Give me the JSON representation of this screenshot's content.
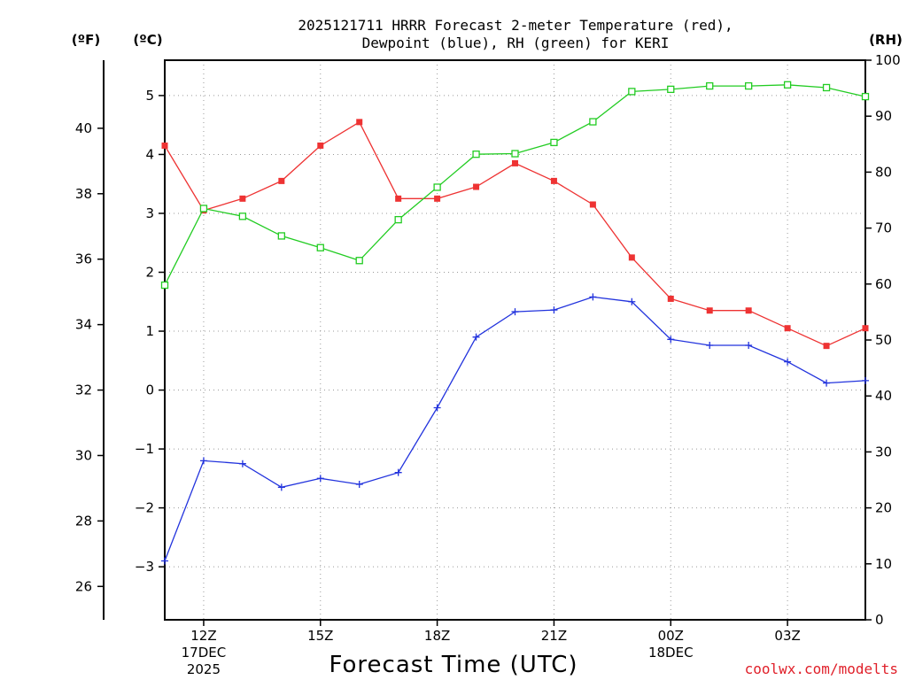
{
  "colors": {
    "temperature": "#ee3333",
    "dewpoint": "#2233dd",
    "rh": "#22cc22",
    "grid": "#999999",
    "axis": "#000000",
    "watermark": "#e0202a"
  },
  "chart_data": {
    "type": "line",
    "title": [
      "2025121711 HRRR Forecast 2-meter Temperature (red),",
      "Dewpoint (blue), RH (green) for KERI"
    ],
    "xlabel": "Forecast Time (UTC)",
    "units": {
      "fahrenheit": "(ºF)",
      "celsius": "(ºC)",
      "rh": "(RH)"
    },
    "x_hours": [
      11,
      12,
      13,
      14,
      15,
      16,
      17,
      18,
      19,
      20,
      21,
      22,
      23,
      24,
      25,
      26,
      27,
      28,
      29
    ],
    "xlim": [
      11,
      29
    ],
    "x_ticks": [
      {
        "hour": 12,
        "label": "12Z",
        "sub1": "17DEC",
        "sub2": "2025"
      },
      {
        "hour": 15,
        "label": "15Z",
        "sub1": "",
        "sub2": ""
      },
      {
        "hour": 18,
        "label": "18Z",
        "sub1": "",
        "sub2": ""
      },
      {
        "hour": 21,
        "label": "21Z",
        "sub1": "",
        "sub2": ""
      },
      {
        "hour": 24,
        "label": "00Z",
        "sub1": "18DEC",
        "sub2": ""
      },
      {
        "hour": 27,
        "label": "03Z",
        "sub1": "",
        "sub2": ""
      }
    ],
    "celsius_axis": {
      "ylim": [
        -3.9,
        5.6
      ],
      "ticks": [
        -3,
        -2,
        -1,
        0,
        1,
        2,
        3,
        4,
        5
      ],
      "labels": [
        "−3",
        "−2",
        "−1",
        "0",
        "1",
        "2",
        "3",
        "4",
        "5"
      ]
    },
    "fahrenheit_axis": {
      "ticks": [
        26,
        28,
        30,
        32,
        34,
        36,
        38,
        40
      ],
      "labels": [
        "26",
        "28",
        "30",
        "32",
        "34",
        "36",
        "38",
        "40"
      ]
    },
    "rh_axis": {
      "ylim": [
        0,
        100
      ],
      "ticks": [
        0,
        10,
        20,
        30,
        40,
        50,
        60,
        70,
        80,
        90,
        100
      ],
      "labels": [
        "0",
        "10",
        "20",
        "30",
        "40",
        "50",
        "60",
        "70",
        "80",
        "90",
        "100"
      ]
    },
    "series": [
      {
        "name": "Temperature",
        "units": "C",
        "marker": "filled-square",
        "values": [
          4.15,
          3.05,
          3.25,
          3.55,
          4.15,
          4.55,
          3.25,
          3.25,
          3.45,
          3.85,
          3.55,
          3.15,
          2.25,
          1.55,
          1.35,
          1.35,
          1.05,
          0.75,
          1.05
        ]
      },
      {
        "name": "Dewpoint",
        "units": "C",
        "marker": "plus",
        "values": [
          -2.9,
          -1.2,
          -1.25,
          -1.65,
          -1.5,
          -1.6,
          -1.4,
          -0.3,
          0.9,
          1.33,
          1.36,
          1.58,
          1.5,
          0.86,
          0.76,
          0.76,
          0.48,
          0.12,
          0.16
        ]
      },
      {
        "name": "RH",
        "units": "%",
        "marker": "open-square",
        "values": [
          59.8,
          73.5,
          72.1,
          68.6,
          66.5,
          64.2,
          71.5,
          77.3,
          83.2,
          83.3,
          85.3,
          89.0,
          94.4,
          94.8,
          95.4,
          95.4,
          95.6,
          95.1,
          93.5
        ]
      }
    ]
  },
  "watermark": "coolwx.com/modelts"
}
